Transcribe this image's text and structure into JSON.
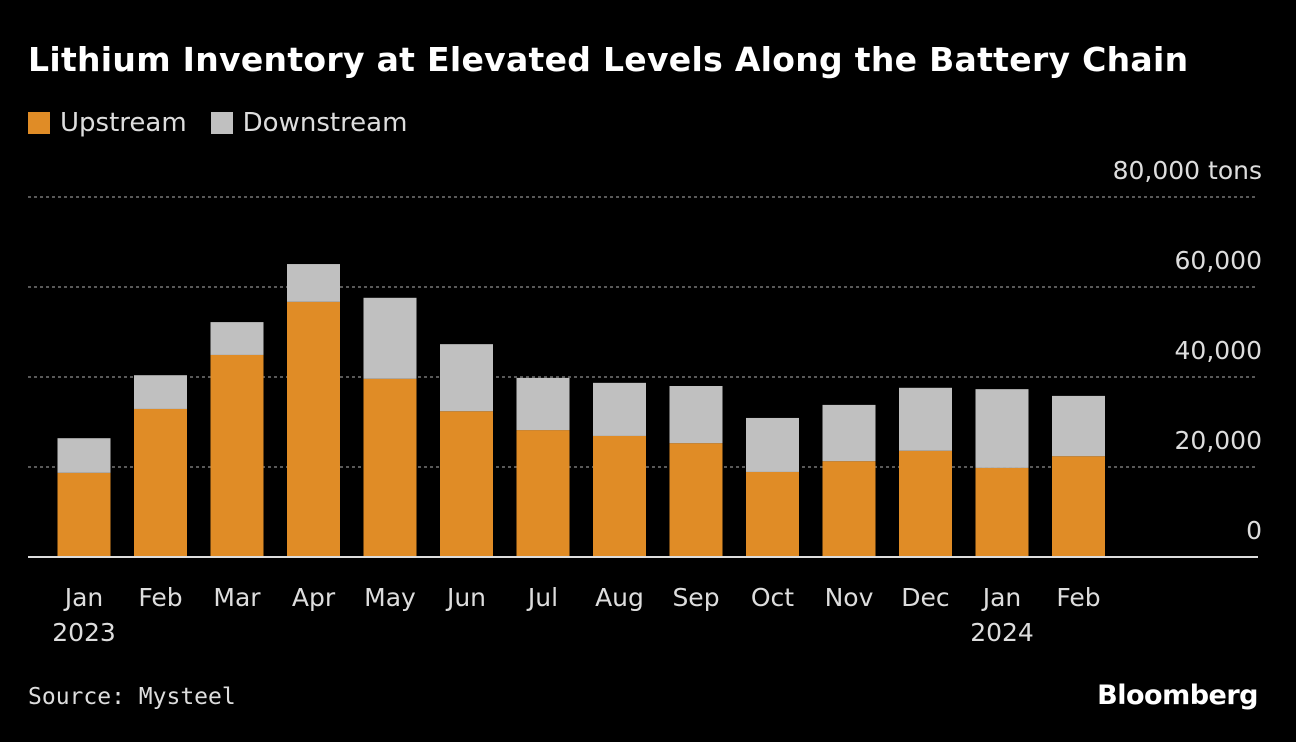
{
  "title": "Lithium Inventory at Elevated Levels Along the Battery Chain",
  "source": "Source: Mysteel",
  "logo": "Bloomberg",
  "chart_data": {
    "type": "bar",
    "stacked": true,
    "categories": [
      "Jan",
      "Feb",
      "Mar",
      "Apr",
      "May",
      "Jun",
      "Jul",
      "Aug",
      "Sep",
      "Oct",
      "Nov",
      "Dec",
      "Jan",
      "Feb"
    ],
    "year_labels": {
      "0": "2023",
      "12": "2024"
    },
    "series": [
      {
        "name": "Upstream",
        "color": "#e08c26",
        "values": [
          18700,
          32900,
          44900,
          56700,
          39600,
          32400,
          28200,
          26900,
          25300,
          18900,
          21300,
          23600,
          19800,
          22400
        ]
      },
      {
        "name": "Downstream",
        "color": "#c0c0c0",
        "values": [
          7700,
          7500,
          7300,
          8400,
          18000,
          14900,
          11600,
          11800,
          12700,
          12000,
          12500,
          14000,
          17500,
          13400
        ]
      }
    ],
    "yunit": "tons",
    "yticks": [
      0,
      20000,
      40000,
      60000,
      80000
    ],
    "ytick_labels": [
      "0",
      "20,000",
      "40,000",
      "60,000",
      "80,000"
    ],
    "ylim": [
      0,
      80000
    ],
    "grid": true,
    "legend": "top-left"
  }
}
